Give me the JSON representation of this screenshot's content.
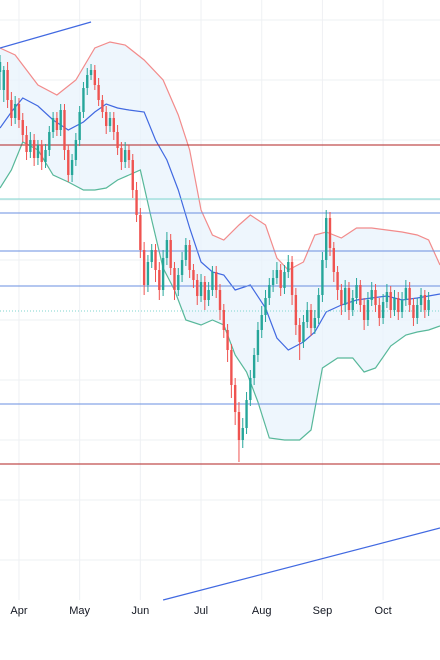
{
  "chart_data": {
    "type": "candlestick",
    "xlabel": "",
    "ylabel": "",
    "x_tick_labels": [
      "Apr",
      "May",
      "Jun",
      "Jul",
      "Aug",
      "Sep",
      "Oct"
    ],
    "x_tick_days": [
      10,
      42,
      74,
      106,
      138,
      170,
      202
    ],
    "x_range_days": [
      0,
      232
    ],
    "y_range": [
      0,
      660
    ],
    "grid": true,
    "legend": "none",
    "colors": {
      "up": "#26a69a",
      "down": "#ef5350",
      "bb_upper": "#f28b8b",
      "bb_lower": "#58b89a",
      "bb_basis": "#4169e1",
      "bb_fill": "#e8f3fc",
      "trendline": "#4169e1",
      "level_red": "#b22222",
      "level_blue": "#6a8fe0",
      "level_teal": "#7fd6cf",
      "grid": "#eef0f3"
    },
    "horizontal_levels": [
      {
        "value": 145,
        "color": "level_red",
        "style": "solid"
      },
      {
        "value": 199,
        "color": "level_teal",
        "style": "solid"
      },
      {
        "value": 213,
        "color": "level_blue",
        "style": "solid"
      },
      {
        "value": 251,
        "color": "level_blue",
        "style": "solid"
      },
      {
        "value": 286,
        "color": "level_blue",
        "style": "solid"
      },
      {
        "value": 311,
        "color": "level_teal",
        "style": "dotted"
      },
      {
        "value": 404,
        "color": "level_blue",
        "style": "solid"
      },
      {
        "value": 464,
        "color": "level_red",
        "style": "solid"
      }
    ],
    "trendlines": [
      {
        "points": [
          [
            0,
            48
          ],
          [
            48,
            22
          ]
        ]
      },
      {
        "points": [
          [
            86,
            600
          ],
          [
            232,
            528
          ]
        ]
      }
    ],
    "bollinger": {
      "upper": [
        [
          0,
          48
        ],
        [
          8,
          55
        ],
        [
          20,
          85
        ],
        [
          30,
          95
        ],
        [
          40,
          80
        ],
        [
          50,
          48
        ],
        [
          58,
          42
        ],
        [
          66,
          45
        ],
        [
          76,
          60
        ],
        [
          86,
          80
        ],
        [
          94,
          115
        ],
        [
          100,
          150
        ],
        [
          106,
          210
        ],
        [
          112,
          235
        ],
        [
          118,
          240
        ],
        [
          126,
          225
        ],
        [
          132,
          215
        ],
        [
          140,
          225
        ],
        [
          146,
          258
        ],
        [
          152,
          270
        ],
        [
          160,
          262
        ],
        [
          166,
          235
        ],
        [
          172,
          232
        ],
        [
          180,
          238
        ],
        [
          188,
          228
        ],
        [
          196,
          228
        ],
        [
          204,
          230
        ],
        [
          212,
          232
        ],
        [
          220,
          235
        ],
        [
          226,
          240
        ],
        [
          232,
          265
        ]
      ],
      "basis": [
        [
          0,
          128
        ],
        [
          6,
          112
        ],
        [
          12,
          98
        ],
        [
          20,
          106
        ],
        [
          28,
          120
        ],
        [
          36,
          130
        ],
        [
          44,
          122
        ],
        [
          50,
          112
        ],
        [
          56,
          104
        ],
        [
          62,
          108
        ],
        [
          68,
          110
        ],
        [
          76,
          112
        ],
        [
          82,
          140
        ],
        [
          88,
          160
        ],
        [
          94,
          190
        ],
        [
          100,
          228
        ],
        [
          106,
          262
        ],
        [
          112,
          272
        ],
        [
          118,
          275
        ],
        [
          124,
          290
        ],
        [
          132,
          285
        ],
        [
          140,
          308
        ],
        [
          146,
          338
        ],
        [
          152,
          350
        ],
        [
          160,
          342
        ],
        [
          166,
          332
        ],
        [
          172,
          312
        ],
        [
          180,
          305
        ],
        [
          188,
          300
        ],
        [
          196,
          298
        ],
        [
          204,
          296
        ],
        [
          212,
          300
        ],
        [
          220,
          298
        ],
        [
          226,
          296
        ],
        [
          232,
          294
        ]
      ],
      "lower": [
        [
          0,
          188
        ],
        [
          6,
          170
        ],
        [
          12,
          142
        ],
        [
          20,
          150
        ],
        [
          28,
          175
        ],
        [
          36,
          182
        ],
        [
          44,
          190
        ],
        [
          50,
          190
        ],
        [
          56,
          188
        ],
        [
          62,
          180
        ],
        [
          68,
          175
        ],
        [
          74,
          170
        ],
        [
          80,
          220
        ],
        [
          86,
          268
        ],
        [
          92,
          290
        ],
        [
          98,
          320
        ],
        [
          106,
          325
        ],
        [
          112,
          320
        ],
        [
          118,
          325
        ],
        [
          124,
          355
        ],
        [
          130,
          372
        ],
        [
          136,
          402
        ],
        [
          142,
          438
        ],
        [
          150,
          440
        ],
        [
          158,
          440
        ],
        [
          164,
          430
        ],
        [
          170,
          368
        ],
        [
          178,
          358
        ],
        [
          186,
          358
        ],
        [
          192,
          372
        ],
        [
          198,
          368
        ],
        [
          206,
          346
        ],
        [
          214,
          335
        ],
        [
          220,
          332
        ],
        [
          226,
          330
        ],
        [
          232,
          326
        ]
      ]
    },
    "candles": [
      [
        0,
        72,
        62,
        90,
        55
      ],
      [
        2,
        90,
        70,
        102,
        66
      ],
      [
        4,
        70,
        100,
        62,
        108
      ],
      [
        6,
        100,
        118,
        92,
        126
      ],
      [
        8,
        118,
        104,
        124,
        96
      ],
      [
        10,
        104,
        120,
        98,
        128
      ],
      [
        12,
        120,
        135,
        113,
        142
      ],
      [
        14,
        135,
        152,
        126,
        160
      ],
      [
        16,
        152,
        140,
        158,
        132
      ],
      [
        18,
        140,
        158,
        134,
        166
      ],
      [
        20,
        158,
        145,
        165,
        140
      ],
      [
        22,
        145,
        162,
        140,
        170
      ],
      [
        24,
        162,
        150,
        168,
        144
      ],
      [
        26,
        150,
        132,
        156,
        126
      ],
      [
        28,
        132,
        118,
        138,
        112
      ],
      [
        30,
        118,
        130,
        112,
        136
      ],
      [
        32,
        130,
        110,
        136,
        104
      ],
      [
        34,
        110,
        150,
        104,
        160
      ],
      [
        36,
        150,
        175,
        145,
        182
      ],
      [
        38,
        175,
        160,
        182,
        154
      ],
      [
        40,
        160,
        140,
        166,
        133
      ],
      [
        42,
        140,
        112,
        146,
        106
      ],
      [
        44,
        112,
        88,
        118,
        82
      ],
      [
        46,
        88,
        75,
        95,
        68
      ],
      [
        48,
        75,
        70,
        80,
        64
      ],
      [
        50,
        70,
        85,
        65,
        90
      ],
      [
        52,
        85,
        100,
        78,
        106
      ],
      [
        54,
        100,
        112,
        95,
        118
      ],
      [
        56,
        112,
        126,
        106,
        134
      ],
      [
        58,
        126,
        118,
        132,
        112
      ],
      [
        60,
        118,
        132,
        112,
        140
      ],
      [
        62,
        132,
        148,
        125,
        155
      ],
      [
        64,
        148,
        162,
        142,
        170
      ],
      [
        66,
        162,
        150,
        168,
        142
      ],
      [
        68,
        150,
        160,
        145,
        168
      ],
      [
        70,
        160,
        190,
        154,
        198
      ],
      [
        72,
        190,
        215,
        182,
        222
      ],
      [
        74,
        215,
        250,
        208,
        258
      ],
      [
        76,
        250,
        285,
        242,
        295
      ],
      [
        78,
        285,
        262,
        292,
        255
      ],
      [
        80,
        262,
        250,
        268,
        244
      ],
      [
        82,
        250,
        270,
        244,
        282
      ],
      [
        84,
        270,
        290,
        262,
        300
      ],
      [
        86,
        290,
        258,
        296,
        250
      ],
      [
        88,
        258,
        240,
        265,
        232
      ],
      [
        90,
        240,
        268,
        234,
        275
      ],
      [
        92,
        268,
        290,
        262,
        300
      ],
      [
        94,
        290,
        275,
        296,
        268
      ],
      [
        96,
        275,
        260,
        282,
        252
      ],
      [
        98,
        260,
        245,
        266,
        238
      ],
      [
        100,
        245,
        270,
        240,
        278
      ],
      [
        102,
        270,
        280,
        264,
        288
      ],
      [
        104,
        280,
        296,
        274,
        305
      ],
      [
        106,
        296,
        282,
        302,
        274
      ],
      [
        108,
        282,
        300,
        276,
        310
      ],
      [
        110,
        300,
        290,
        306,
        282
      ],
      [
        112,
        290,
        272,
        296,
        266
      ],
      [
        114,
        272,
        290,
        266,
        298
      ],
      [
        116,
        290,
        310,
        284,
        320
      ],
      [
        118,
        310,
        330,
        304,
        338
      ],
      [
        120,
        330,
        350,
        324,
        362
      ],
      [
        122,
        350,
        385,
        344,
        398
      ],
      [
        124,
        385,
        412,
        378,
        425
      ],
      [
        126,
        412,
        440,
        402,
        462
      ],
      [
        128,
        440,
        428,
        448,
        418
      ],
      [
        130,
        428,
        400,
        434,
        392
      ],
      [
        132,
        400,
        378,
        406,
        370
      ],
      [
        134,
        378,
        355,
        385,
        348
      ],
      [
        136,
        355,
        330,
        362,
        322
      ],
      [
        138,
        330,
        315,
        338,
        306
      ],
      [
        140,
        315,
        298,
        322,
        290
      ],
      [
        142,
        298,
        285,
        305,
        278
      ],
      [
        144,
        285,
        278,
        292,
        270
      ],
      [
        146,
        278,
        270,
        284,
        262
      ],
      [
        148,
        270,
        288,
        264,
        296
      ],
      [
        150,
        288,
        272,
        294,
        265
      ],
      [
        152,
        272,
        262,
        278,
        255
      ],
      [
        154,
        262,
        295,
        256,
        305
      ],
      [
        156,
        295,
        325,
        288,
        335
      ],
      [
        158,
        325,
        342,
        318,
        360
      ],
      [
        160,
        342,
        322,
        348,
        315
      ],
      [
        162,
        322,
        310,
        328,
        302
      ],
      [
        164,
        310,
        328,
        304,
        336
      ],
      [
        166,
        328,
        318,
        334,
        310
      ],
      [
        168,
        318,
        295,
        324,
        288
      ],
      [
        170,
        295,
        260,
        302,
        252
      ],
      [
        172,
        260,
        218,
        268,
        210
      ],
      [
        174,
        218,
        248,
        212,
        256
      ],
      [
        176,
        248,
        272,
        242,
        282
      ],
      [
        178,
        272,
        290,
        266,
        300
      ],
      [
        180,
        290,
        305,
        284,
        315
      ],
      [
        182,
        305,
        288,
        312,
        280
      ],
      [
        184,
        288,
        310,
        282,
        320
      ],
      [
        186,
        310,
        298,
        316,
        290
      ],
      [
        188,
        298,
        285,
        304,
        278
      ],
      [
        190,
        285,
        305,
        280,
        312
      ],
      [
        192,
        305,
        320,
        298,
        330
      ],
      [
        194,
        320,
        300,
        326,
        292
      ],
      [
        196,
        300,
        290,
        306,
        282
      ],
      [
        198,
        290,
        305,
        284,
        312
      ],
      [
        200,
        305,
        318,
        298,
        326
      ],
      [
        202,
        318,
        302,
        324,
        294
      ],
      [
        204,
        302,
        292,
        308,
        284
      ],
      [
        206,
        292,
        310,
        286,
        318
      ],
      [
        208,
        310,
        298,
        316,
        290
      ],
      [
        210,
        298,
        312,
        292,
        320
      ],
      [
        212,
        312,
        300,
        318,
        292
      ],
      [
        214,
        300,
        288,
        306,
        280
      ],
      [
        216,
        288,
        305,
        282,
        312
      ],
      [
        218,
        305,
        318,
        298,
        326
      ],
      [
        220,
        318,
        305,
        324,
        298
      ],
      [
        222,
        305,
        295,
        312,
        288
      ],
      [
        224,
        295,
        310,
        290,
        318
      ],
      [
        226,
        310,
        300,
        316,
        292
      ]
    ]
  }
}
